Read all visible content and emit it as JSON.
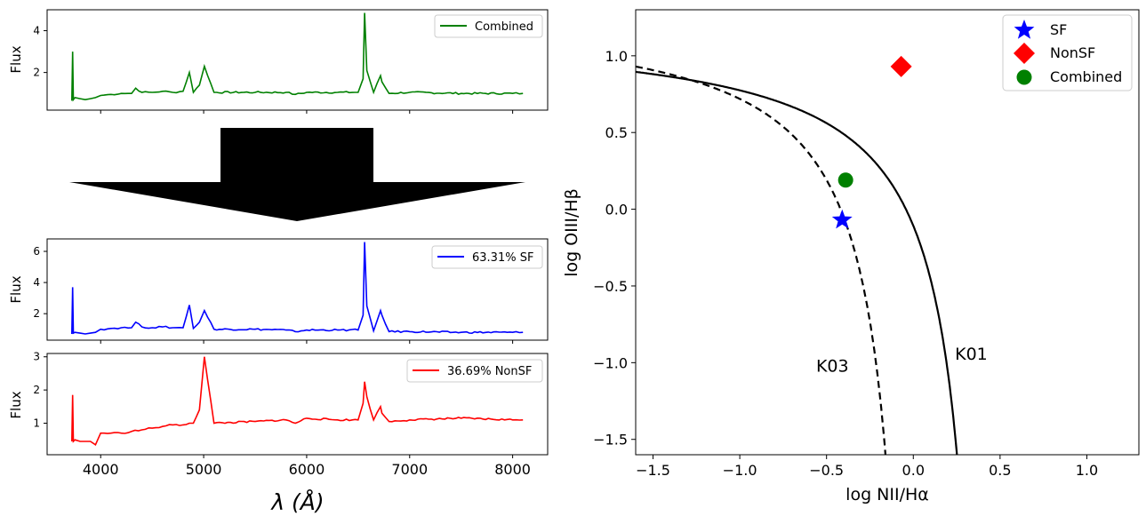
{
  "chart_data": [
    {
      "type": "line",
      "panel": "top-spectrum",
      "ylabel": "Flux",
      "xlim": [
        3480,
        8340
      ],
      "ylim": [
        0.2,
        5.0
      ],
      "yticks": [
        "2",
        "4"
      ],
      "ytick_values": [
        2,
        4
      ],
      "xtick_labels_shown": false,
      "legend": "upper right",
      "series": [
        {
          "name": "Combined",
          "color": "#008000",
          "x": [
            3720,
            3728,
            3735,
            3750,
            3800,
            3850,
            3900,
            3950,
            4000,
            4100,
            4200,
            4300,
            4340,
            4400,
            4500,
            4600,
            4700,
            4800,
            4861,
            4900,
            4959,
            5007,
            5100,
            5500,
            5800,
            5890,
            6000,
            6300,
            6500,
            6548,
            6563,
            6584,
            6650,
            6717,
            6731,
            6800,
            7000,
            7500,
            8000,
            8100
          ],
          "y": [
            0.65,
            3.0,
            0.7,
            0.8,
            0.75,
            0.7,
            0.75,
            0.8,
            0.9,
            0.95,
            1.0,
            1.0,
            1.25,
            1.05,
            1.05,
            1.1,
            1.05,
            1.1,
            2.0,
            1.05,
            1.4,
            2.3,
            1.05,
            1.05,
            1.05,
            0.95,
            1.05,
            1.05,
            1.05,
            1.7,
            4.85,
            2.1,
            1.05,
            1.85,
            1.55,
            1.0,
            1.05,
            1.0,
            1.0,
            1.0
          ]
        }
      ]
    },
    {
      "type": "line",
      "panel": "middle-spectrum",
      "ylabel": "Flux",
      "xlim": [
        3480,
        8340
      ],
      "ylim": [
        0.3,
        6.8
      ],
      "yticks": [
        "2",
        "4",
        "6"
      ],
      "ytick_values": [
        2,
        4,
        6
      ],
      "xtick_labels_shown": false,
      "legend": "upper right",
      "series": [
        {
          "name": "63.31% SF",
          "color": "#0000ff",
          "x": [
            3720,
            3728,
            3735,
            3750,
            3800,
            3850,
            3900,
            3950,
            4000,
            4100,
            4200,
            4300,
            4340,
            4400,
            4500,
            4600,
            4700,
            4800,
            4861,
            4900,
            4959,
            5007,
            5100,
            5500,
            5800,
            5890,
            6000,
            6300,
            6500,
            6548,
            6563,
            6584,
            6650,
            6717,
            6731,
            6800,
            7000,
            7500,
            8000,
            8100
          ],
          "y": [
            0.7,
            3.7,
            0.75,
            0.8,
            0.75,
            0.7,
            0.75,
            0.8,
            1.0,
            1.05,
            1.1,
            1.1,
            1.45,
            1.15,
            1.1,
            1.15,
            1.1,
            1.1,
            2.55,
            1.05,
            1.45,
            2.2,
            1.0,
            1.0,
            0.95,
            0.85,
            0.95,
            0.95,
            0.95,
            1.9,
            6.6,
            2.5,
            0.9,
            2.2,
            1.9,
            0.85,
            0.85,
            0.8,
            0.8,
            0.8
          ]
        }
      ]
    },
    {
      "type": "line",
      "panel": "bottom-spectrum",
      "ylabel": "Flux",
      "xlabel": "λ (Å)",
      "xlim": [
        3480,
        8340
      ],
      "ylim": [
        0.05,
        3.1
      ],
      "yticks": [
        "1",
        "2",
        "3"
      ],
      "ytick_values": [
        1,
        2,
        3
      ],
      "xticks": [
        "4000",
        "5000",
        "6000",
        "7000",
        "8000"
      ],
      "xtick_values": [
        4000,
        5000,
        6000,
        7000,
        8000
      ],
      "legend": "upper right",
      "series": [
        {
          "name": "36.69% NonSF",
          "color": "#ff0000",
          "x": [
            3720,
            3728,
            3735,
            3750,
            3800,
            3850,
            3900,
            3950,
            4000,
            4100,
            4200,
            4300,
            4400,
            4500,
            4600,
            4700,
            4800,
            4861,
            4900,
            4959,
            5007,
            5100,
            5500,
            5800,
            5890,
            6000,
            6300,
            6500,
            6548,
            6563,
            6584,
            6650,
            6717,
            6731,
            6800,
            7000,
            7500,
            8000,
            8100
          ],
          "y": [
            0.45,
            1.85,
            0.45,
            0.5,
            0.45,
            0.45,
            0.45,
            0.35,
            0.7,
            0.7,
            0.7,
            0.75,
            0.8,
            0.85,
            0.9,
            0.95,
            0.95,
            1.0,
            1.0,
            1.4,
            3.0,
            1.0,
            1.05,
            1.1,
            1.0,
            1.15,
            1.1,
            1.1,
            1.6,
            2.25,
            1.8,
            1.1,
            1.5,
            1.3,
            1.05,
            1.1,
            1.15,
            1.1,
            1.1
          ]
        }
      ]
    },
    {
      "type": "scatter",
      "panel": "bpt-diagram",
      "xlabel": "log NII/Hα",
      "ylabel": "log OIII/Hβ",
      "xlim": [
        -1.6,
        1.3
      ],
      "ylim": [
        -1.6,
        1.3
      ],
      "xticks": [
        "−1.5",
        "−1.0",
        "−0.5",
        "0.0",
        "0.5",
        "1.0"
      ],
      "xtick_values": [
        -1.5,
        -1.0,
        -0.5,
        0.0,
        0.5,
        1.0
      ],
      "yticks": [
        "−1.5",
        "−1.0",
        "−0.5",
        "0.0",
        "0.5",
        "1.0"
      ],
      "ytick_values": [
        -1.5,
        -1.0,
        -0.5,
        0.0,
        0.5,
        1.0
      ],
      "legend": "upper right",
      "series": [
        {
          "name": "SF",
          "marker": "star",
          "color": "#0000ff",
          "x": [
            -0.41
          ],
          "y": [
            -0.07
          ]
        },
        {
          "name": "NonSF",
          "marker": "diamond",
          "color": "#ff0000",
          "x": [
            -0.07
          ],
          "y": [
            0.93
          ]
        },
        {
          "name": "Combined",
          "marker": "circle",
          "color": "#008000",
          "x": [
            -0.39
          ],
          "y": [
            0.19
          ]
        }
      ],
      "curves": [
        {
          "name": "K01",
          "style": "solid",
          "color": "#000000",
          "text_x": 0.24,
          "text_y": -0.98
        },
        {
          "name": "K03",
          "style": "dashed",
          "color": "#000000",
          "text_x": -0.56,
          "text_y": -1.06
        }
      ]
    }
  ],
  "arrow_color": "#000000"
}
